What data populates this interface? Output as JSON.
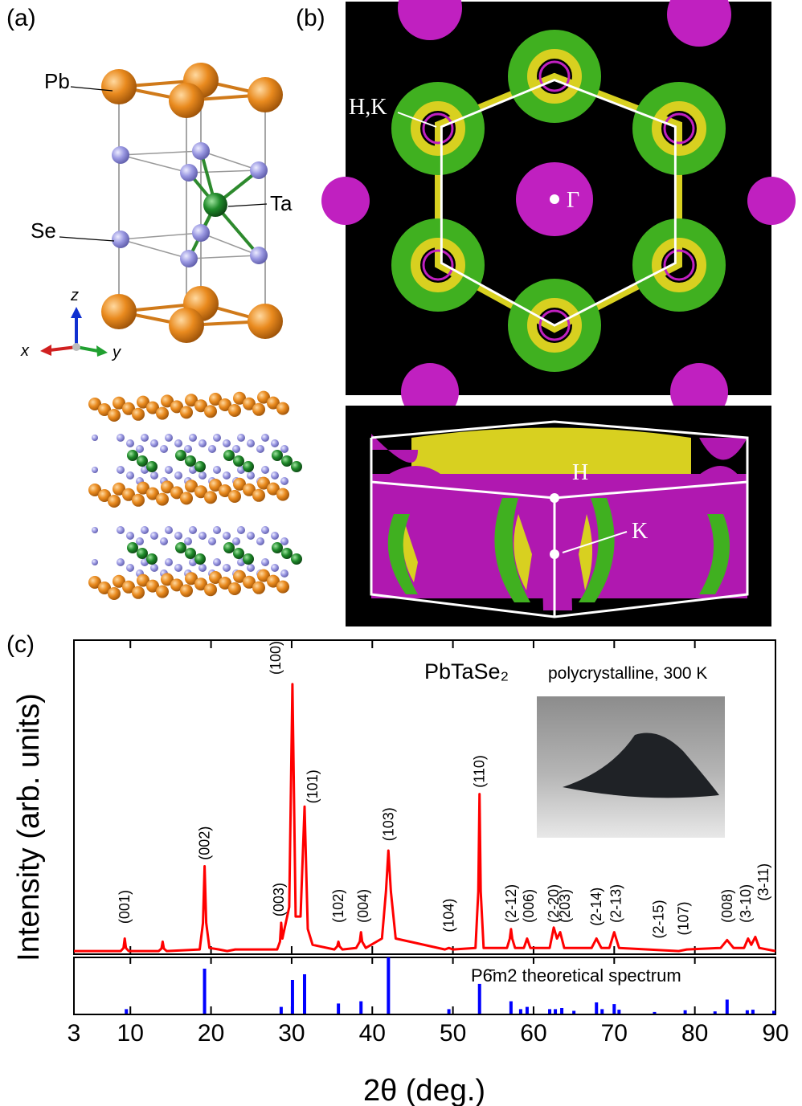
{
  "panel_a": {
    "label": "(a)",
    "atoms": [
      "Pb",
      "Se",
      "Ta"
    ],
    "axes": [
      "x",
      "y",
      "z"
    ]
  },
  "panel_b": {
    "label": "(b)",
    "top_labels": [
      "H,K",
      "Γ"
    ],
    "bottom_labels": [
      "H",
      "K"
    ]
  },
  "panel_c": {
    "label": "(c)"
  },
  "chart_data": {
    "type": "line",
    "title": "PbTaSe₂",
    "subtitle": "polycrystalline, 300 K",
    "xlabel": "2θ (deg.)",
    "ylabel": "Intensity (arb. units)",
    "xlim": [
      3,
      90
    ],
    "xticks": [
      3,
      10,
      20,
      30,
      40,
      50,
      60,
      70,
      80,
      90
    ],
    "ylim": [
      0,
      100
    ],
    "color": "#ff0000",
    "x": [
      3,
      8.8,
      9.15,
      9.3,
      9.45,
      9.8,
      13.5,
      13.85,
      14,
      14.15,
      14.5,
      18.6,
      19.0,
      19.2,
      19.4,
      19.8,
      21,
      22,
      23,
      28.2,
      28.55,
      28.7,
      28.85,
      29.7,
      30.1,
      30.5,
      31.1,
      31.6,
      32.0,
      32.6,
      35.3,
      35.65,
      35.8,
      35.95,
      36.3,
      38.0,
      38.45,
      38.6,
      38.75,
      39.2,
      41.2,
      41.7,
      42.0,
      42.3,
      42.9,
      49,
      49.5,
      50,
      52.8,
      53.15,
      53.3,
      53.45,
      53.8,
      56.7,
      57.05,
      57.2,
      57.35,
      57.7,
      58.8,
      59.2,
      59.6,
      62.0,
      62.5,
      62.9,
      63.3,
      63.8,
      67.2,
      67.8,
      68.4,
      69.4,
      70.0,
      70.6,
      78,
      79,
      83.2,
      84.0,
      84.8,
      86.1,
      86.6,
      87.0,
      87.5,
      88.0,
      90
    ],
    "values": [
      1,
      1,
      2,
      5,
      2,
      1,
      1,
      1.8,
      4,
      1.8,
      1,
      1.5,
      10,
      28,
      10,
      2,
      1.5,
      1,
      1.5,
      1.5,
      4,
      10,
      5,
      15,
      86,
      12,
      12,
      47,
      8,
      3,
      1.5,
      2.5,
      4,
      2.5,
      1.5,
      2,
      4,
      7,
      4,
      2,
      5,
      20,
      33,
      20,
      5,
      1.5,
      2,
      1.5,
      2,
      20,
      51,
      20,
      2,
      2,
      5,
      8,
      5,
      2,
      2,
      5,
      2,
      2,
      8.5,
      5,
      7,
      2,
      2,
      5,
      2,
      2,
      7,
      2,
      1,
      1.5,
      2,
      4.5,
      2,
      2,
      5,
      3,
      5.5,
      2,
      1
    ],
    "peak_labels": [
      {
        "text": "(001)",
        "x": 9.3,
        "y": 9.7
      },
      {
        "text": "(002)",
        "x": 19.2,
        "y": 30
      },
      {
        "text": "(003)",
        "x": 28.4,
        "y": 12
      },
      {
        "text": "(100)",
        "x": 28.0,
        "y": 89
      },
      {
        "text": "(101)",
        "x": 32.6,
        "y": 48
      },
      {
        "text": "(102)",
        "x": 35.8,
        "y": 10
      },
      {
        "text": "(004)",
        "x": 38.9,
        "y": 10
      },
      {
        "text": "(103)",
        "x": 42.0,
        "y": 36
      },
      {
        "text": "(104)",
        "x": 49.5,
        "y": 7
      },
      {
        "text": "(110)",
        "x": 53.3,
        "y": 53
      },
      {
        "text": "(2-12)",
        "x": 57.2,
        "y": 10
      },
      {
        "text": "(006)",
        "x": 59.4,
        "y": 10
      },
      {
        "text": "(2-20)",
        "x": 62.5,
        "y": 10
      },
      {
        "text": "(203)",
        "x": 63.9,
        "y": 10
      },
      {
        "text": "(2-14)",
        "x": 67.8,
        "y": 9
      },
      {
        "text": "(2-13)",
        "x": 70.2,
        "y": 10
      },
      {
        "text": "(2-15)",
        "x": 75.5,
        "y": 5
      },
      {
        "text": "(107)",
        "x": 78.6,
        "y": 6
      },
      {
        "text": "(008)",
        "x": 84.0,
        "y": 10
      },
      {
        "text": "(3-10)",
        "x": 86.3,
        "y": 10
      },
      {
        "text": "(3-11)",
        "x": 88.5,
        "y": 17
      }
    ],
    "theory": {
      "name": "P6̄m2 theoretical spectrum",
      "color": "#0000ff",
      "ylim": [
        0,
        100
      ],
      "x": [
        9.5,
        19.2,
        28.7,
        30.1,
        31.6,
        35.8,
        38.6,
        42.0,
        49.5,
        53.3,
        57.2,
        58.4,
        59.2,
        62.0,
        62.7,
        63.5,
        65.0,
        67.8,
        68.5,
        70.0,
        70.6,
        75.0,
        78.8,
        82.5,
        84.0,
        86.5,
        87.2,
        89.8
      ],
      "values": [
        8,
        80,
        12,
        60,
        70,
        18,
        22,
        100,
        8,
        53,
        22,
        8,
        12,
        8,
        8,
        10,
        5,
        20,
        8,
        17,
        7,
        3,
        6,
        4,
        25,
        6,
        7,
        5
      ]
    }
  }
}
